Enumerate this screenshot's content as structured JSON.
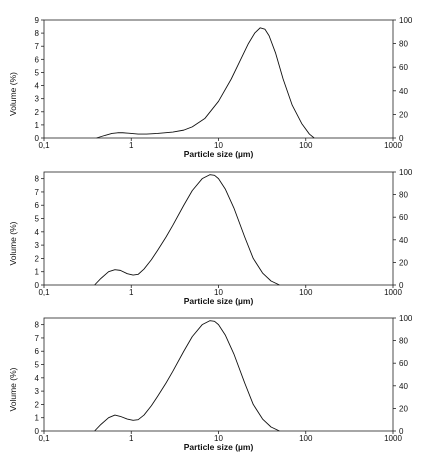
{
  "chart_data": [
    {
      "type": "line",
      "xlabel": "Particle size (µm)",
      "ylabel": "Volume (%)",
      "x_scale": "log",
      "xlim": [
        0.1,
        1000
      ],
      "ylim": [
        0,
        9
      ],
      "y2lim": [
        0,
        100
      ],
      "x_tick_labels": [
        "0,1",
        "1",
        "10",
        "100",
        "1000"
      ],
      "y_tick_labels": [
        "0",
        "1",
        "2",
        "3",
        "4",
        "5",
        "6",
        "7",
        "8",
        "9"
      ],
      "y2_tick_labels": [
        "0",
        "20",
        "40",
        "60",
        "80",
        "100"
      ],
      "series": [
        {
          "x": [
            0.4,
            0.5,
            0.6,
            0.7,
            0.8,
            1.0,
            1.2,
            1.5,
            2.0,
            3.0,
            4.0,
            5.0,
            7.0,
            10.0,
            14.0,
            18.0,
            22.0,
            26.0,
            30.0,
            34.0,
            38.0,
            45.0,
            55.0,
            70.0,
            90.0,
            110.0,
            125.0
          ],
          "y": [
            0.0,
            0.2,
            0.35,
            0.4,
            0.4,
            0.35,
            0.3,
            0.3,
            0.35,
            0.45,
            0.6,
            0.85,
            1.5,
            2.8,
            4.5,
            6.0,
            7.2,
            8.0,
            8.4,
            8.3,
            7.8,
            6.5,
            4.5,
            2.5,
            1.1,
            0.3,
            0.0
          ]
        }
      ]
    },
    {
      "type": "line",
      "xlabel": "Particle size (µm)",
      "ylabel": "Volume (%)",
      "x_scale": "log",
      "xlim": [
        0.1,
        1000
      ],
      "ylim": [
        0,
        8.5
      ],
      "y2lim": [
        0,
        100
      ],
      "x_tick_labels": [
        "0,1",
        "1",
        "10",
        "100",
        "1000"
      ],
      "y_tick_labels": [
        "0",
        "1",
        "2",
        "3",
        "4",
        "5",
        "6",
        "7",
        "8"
      ],
      "y2_tick_labels": [
        "0",
        "20",
        "40",
        "60",
        "80",
        "100"
      ],
      "series": [
        {
          "x": [
            0.38,
            0.45,
            0.55,
            0.65,
            0.75,
            0.9,
            1.05,
            1.2,
            1.4,
            1.7,
            2.0,
            2.5,
            3.0,
            4.0,
            5.0,
            6.5,
            8.0,
            9.0,
            10.0,
            12.0,
            15.0,
            20.0,
            25.0,
            32.0,
            40.0,
            50.0
          ],
          "y": [
            0.0,
            0.5,
            1.0,
            1.15,
            1.1,
            0.85,
            0.75,
            0.8,
            1.2,
            1.9,
            2.6,
            3.6,
            4.5,
            6.0,
            7.1,
            8.0,
            8.3,
            8.25,
            8.0,
            7.2,
            5.8,
            3.6,
            2.0,
            0.9,
            0.3,
            0.0
          ]
        }
      ]
    },
    {
      "type": "line",
      "xlabel": "Particle size (µm)",
      "ylabel": "Volume (%)",
      "x_scale": "log",
      "xlim": [
        0.1,
        1000
      ],
      "ylim": [
        0,
        8.5
      ],
      "y2lim": [
        0,
        100
      ],
      "x_tick_labels": [
        "0,1",
        "1",
        "10",
        "100",
        "1000"
      ],
      "y_tick_labels": [
        "0",
        "1",
        "2",
        "3",
        "4",
        "5",
        "6",
        "7",
        "8"
      ],
      "y2_tick_labels": [
        "0",
        "20",
        "40",
        "60",
        "80",
        "100"
      ],
      "series": [
        {
          "x": [
            0.38,
            0.45,
            0.55,
            0.65,
            0.75,
            0.9,
            1.05,
            1.2,
            1.4,
            1.7,
            2.0,
            2.5,
            3.0,
            4.0,
            5.0,
            6.5,
            8.0,
            9.0,
            10.0,
            12.0,
            15.0,
            20.0,
            25.0,
            32.0,
            40.0,
            50.0
          ],
          "y": [
            0.0,
            0.5,
            1.0,
            1.2,
            1.1,
            0.9,
            0.8,
            0.85,
            1.2,
            1.9,
            2.6,
            3.6,
            4.5,
            6.0,
            7.1,
            8.0,
            8.3,
            8.25,
            8.0,
            7.2,
            5.8,
            3.6,
            2.0,
            0.9,
            0.3,
            0.0
          ]
        }
      ]
    }
  ]
}
